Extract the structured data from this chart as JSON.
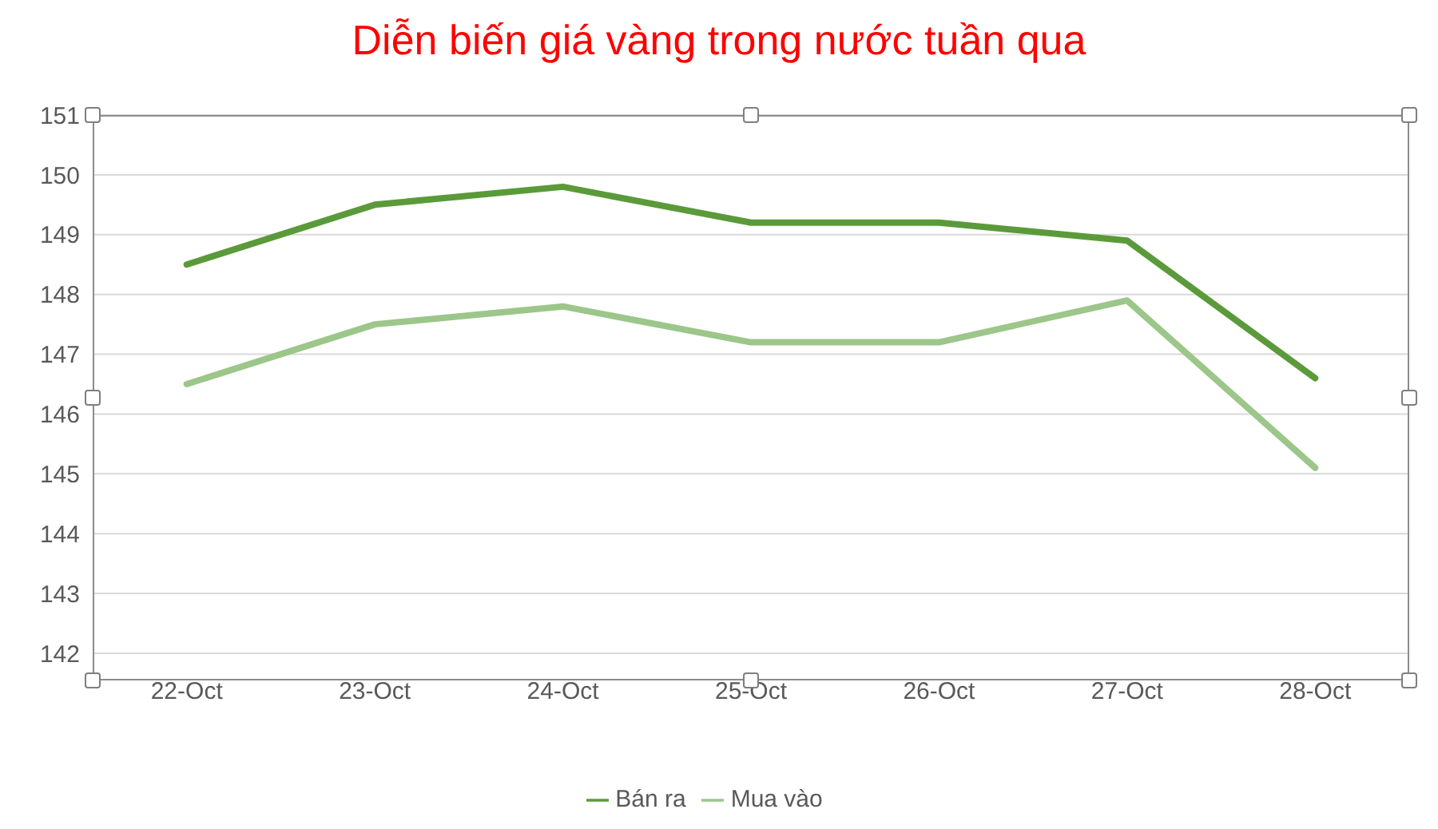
{
  "chart_data": {
    "type": "line",
    "title": "Diễn biến giá vàng trong nước tuần qua",
    "categories": [
      "22-Oct",
      "23-Oct",
      "24-Oct",
      "25-Oct",
      "26-Oct",
      "27-Oct",
      "28-Oct"
    ],
    "series": [
      {
        "name": "Mua vào",
        "color": "#9cc68a",
        "values": [
          146.5,
          147.5,
          147.8,
          147.2,
          147.2,
          147.9,
          145.1
        ]
      },
      {
        "name": "Bán ra",
        "color": "#5b9a3a",
        "values": [
          148.5,
          149.5,
          149.8,
          149.2,
          149.2,
          148.9,
          146.6
        ]
      }
    ],
    "ylim": [
      142,
      151
    ],
    "yticks": [
      142,
      143,
      144,
      145,
      146,
      147,
      148,
      149,
      150,
      151
    ],
    "grid": "y",
    "legend": "bottom",
    "marker": "none",
    "line_style": "solid"
  }
}
